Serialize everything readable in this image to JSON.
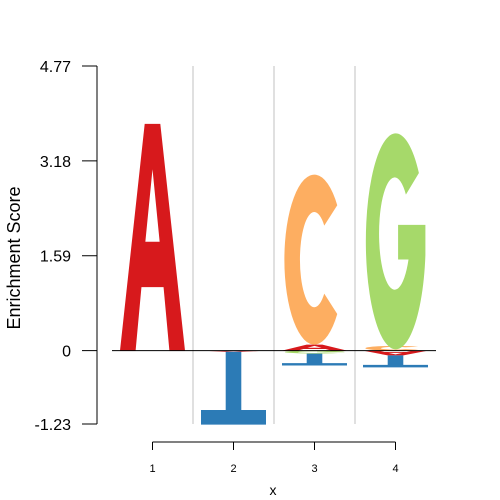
{
  "chart_data": {
    "type": "sequence-logo",
    "xlabel": "x",
    "ylabel": "Enrichment Score",
    "ylim": [
      -1.23,
      4.77
    ],
    "y_ticks": [
      "-1.23",
      "0",
      "1.59",
      "3.18",
      "4.77"
    ],
    "x_ticks": [
      "1",
      "2",
      "3",
      "4"
    ],
    "colors": {
      "A": "#d7191c",
      "C": "#fdae61",
      "G": "#a6d96a",
      "T": "#2c7bb6"
    },
    "positions": [
      {
        "x": "1",
        "letters": [
          {
            "char": "A",
            "value": 3.8
          }
        ]
      },
      {
        "x": "2",
        "letters": [
          {
            "char": "A",
            "value": -0.02
          },
          {
            "char": "T",
            "value": -1.22
          }
        ]
      },
      {
        "x": "3",
        "letters": [
          {
            "char": "A",
            "value": 0.1
          },
          {
            "char": "G",
            "value": -0.05
          },
          {
            "char": "T",
            "value": -0.2
          },
          {
            "char": "C",
            "value": 2.85
          }
        ]
      },
      {
        "x": "4",
        "letters": [
          {
            "char": "C",
            "value": 0.08
          },
          {
            "char": "A",
            "value": -0.08
          },
          {
            "char": "T",
            "value": -0.2
          },
          {
            "char": "G",
            "value": 3.62
          }
        ]
      }
    ]
  }
}
